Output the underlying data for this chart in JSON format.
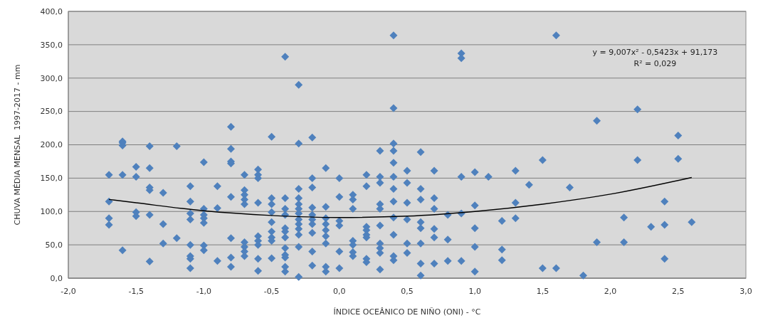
{
  "chart_data": {
    "type": "scatter",
    "xlabel": "ÍNDICE OCEÂNICO DE NIÑO (ONI) - °C",
    "ylabel": "CHUVA MÉDIA MENSAL  1997-2017 - mm",
    "grid": "y",
    "annotations": [
      "y = 9,007x² - 0,5423x + 91,173",
      "R² = 0,029"
    ],
    "xlim": [
      -2,
      3
    ],
    "xticks": [
      {
        "value": -2,
        "label": "-2,0"
      },
      {
        "value": -1.5,
        "label": "-1,5"
      },
      {
        "value": -1,
        "label": "-1,0"
      },
      {
        "value": -0.5,
        "label": "-0,5"
      },
      {
        "value": 0,
        "label": "0,0"
      },
      {
        "value": 0.5,
        "label": "0,5"
      },
      {
        "value": 1,
        "label": "1,0"
      },
      {
        "value": 1.5,
        "label": "1,5"
      },
      {
        "value": 2,
        "label": "2,0"
      },
      {
        "value": 2.5,
        "label": "2,5"
      },
      {
        "value": 3,
        "label": "3,0"
      }
    ],
    "ylim": [
      0,
      400
    ],
    "yticks": [
      {
        "value": 0,
        "label": "0,0"
      },
      {
        "value": 50,
        "label": "50,0"
      },
      {
        "value": 100,
        "label": "100,0"
      },
      {
        "value": 150,
        "label": "150,0"
      },
      {
        "value": 200,
        "label": "200,0"
      },
      {
        "value": 250,
        "label": "250,0"
      },
      {
        "value": 300,
        "label": "300,0"
      },
      {
        "value": 350,
        "label": "350,0"
      },
      {
        "value": 400,
        "label": "400,0"
      }
    ],
    "series": [
      {
        "marker": "diamond",
        "color": "#4f81bd",
        "x": [
          -1.7,
          -1.7,
          -1.7,
          -1.7,
          -1.6,
          -1.6,
          -1.6,
          -1.6,
          -1.6,
          -1.5,
          -1.5,
          -1.5,
          -1.5,
          -1.4,
          -1.4,
          -1.4,
          -1.4,
          -1.4,
          -1.4,
          -1.3,
          -1.3,
          -1.3,
          -1.2,
          -1.2,
          -1.1,
          -1.1,
          -1.1,
          -1.1,
          -1.1,
          -1.1,
          -1.1,
          -1.1,
          -1,
          -1,
          -1,
          -1,
          -1,
          -1,
          -1,
          -0.9,
          -0.9,
          -0.9,
          -0.8,
          -0.8,
          -0.8,
          -0.8,
          -0.8,
          -0.8,
          -0.8,
          -0.8,
          -0.7,
          -0.7,
          -0.7,
          -0.7,
          -0.7,
          -0.7,
          -0.7,
          -0.7,
          -0.7,
          -0.6,
          -0.6,
          -0.6,
          -0.6,
          -0.6,
          -0.6,
          -0.6,
          -0.6,
          -0.6,
          -0.5,
          -0.5,
          -0.5,
          -0.5,
          -0.5,
          -0.5,
          -0.5,
          -0.5,
          -0.5,
          -0.4,
          -0.4,
          -0.4,
          -0.4,
          -0.4,
          -0.4,
          -0.4,
          -0.4,
          -0.4,
          -0.4,
          -0.4,
          -0.4,
          -0.3,
          -0.3,
          -0.3,
          -0.3,
          -0.3,
          -0.3,
          -0.3,
          -0.3,
          -0.3,
          -0.3,
          -0.3,
          -0.3,
          -0.3,
          -0.2,
          -0.2,
          -0.2,
          -0.2,
          -0.2,
          -0.2,
          -0.2,
          -0.2,
          -0.2,
          -0.2,
          -0.1,
          -0.1,
          -0.1,
          -0.1,
          -0.1,
          -0.1,
          -0.1,
          -0.1,
          -0.1,
          0,
          0,
          0,
          0,
          0,
          0,
          0.1,
          0.1,
          0.1,
          0.1,
          0.1,
          0.1,
          0.1,
          0.2,
          0.2,
          0.2,
          0.2,
          0.2,
          0.2,
          0.2,
          0.2,
          0.3,
          0.3,
          0.3,
          0.3,
          0.3,
          0.3,
          0.3,
          0.3,
          0.3,
          0.3,
          0.4,
          0.4,
          0.4,
          0.4,
          0.4,
          0.4,
          0.4,
          0.4,
          0.4,
          0.4,
          0.4,
          0.4,
          0.5,
          0.5,
          0.5,
          0.5,
          0.5,
          0.5,
          0.6,
          0.6,
          0.6,
          0.6,
          0.6,
          0.6,
          0.6,
          0.6,
          0.7,
          0.7,
          0.7,
          0.7,
          0.7,
          0.7,
          0.8,
          0.8,
          0.8,
          0.9,
          0.9,
          0.9,
          0.9,
          0.9,
          1,
          1,
          1,
          1,
          1,
          1.1,
          1.2,
          1.2,
          1.2,
          1.3,
          1.3,
          1.3,
          1.4,
          1.5,
          1.5,
          1.6,
          1.6,
          1.7,
          1.8,
          1.9,
          1.9,
          2.1,
          2.1,
          2.2,
          2.2,
          2.3,
          2.4,
          2.4,
          2.4,
          2.5,
          2.5,
          2.6
        ],
        "values": [
          155,
          115,
          90,
          80,
          205,
          203,
          199,
          155,
          42,
          167,
          152,
          99,
          93,
          198,
          165,
          136,
          132,
          95,
          25,
          128,
          81,
          52,
          198,
          60,
          138,
          115,
          97,
          88,
          50,
          33,
          29,
          15,
          174,
          104,
          95,
          90,
          83,
          49,
          42,
          138,
          105,
          26,
          227,
          194,
          175,
          172,
          122,
          60,
          31,
          17,
          155,
          132,
          125,
          118,
          111,
          54,
          47,
          40,
          33,
          163,
          155,
          150,
          113,
          63,
          56,
          50,
          29,
          11,
          212,
          120,
          111,
          99,
          84,
          70,
          61,
          56,
          30,
          332,
          120,
          104,
          95,
          75,
          70,
          61,
          45,
          35,
          31,
          17,
          10,
          290,
          202,
          134,
          120,
          111,
          104,
          97,
          88,
          81,
          74,
          65,
          47,
          2,
          211,
          150,
          136,
          106,
          95,
          88,
          81,
          68,
          40,
          19,
          165,
          107,
          90,
          81,
          72,
          63,
          52,
          17,
          10,
          150,
          122,
          86,
          79,
          40,
          15,
          125,
          118,
          104,
          56,
          50,
          39,
          33,
          155,
          138,
          77,
          72,
          65,
          61,
          29,
          24,
          191,
          152,
          143,
          111,
          104,
          79,
          52,
          45,
          38,
          13,
          364,
          255,
          202,
          191,
          173,
          152,
          134,
          115,
          91,
          65,
          33,
          27,
          161,
          143,
          113,
          88,
          52,
          38,
          189,
          134,
          118,
          84,
          75,
          52,
          22,
          4,
          161,
          120,
          104,
          74,
          61,
          22,
          95,
          58,
          26,
          337,
          330,
          152,
          97,
          26,
          159,
          109,
          75,
          47,
          10,
          152,
          86,
          43,
          27,
          161,
          113,
          90,
          140,
          177,
          15,
          364,
          15,
          136,
          4,
          236,
          54,
          91,
          54,
          253,
          177,
          77,
          115,
          80,
          29,
          214,
          179,
          84
        ]
      },
      {
        "type": "line",
        "marker": "none",
        "color": "#000000",
        "x": [
          -1.7,
          -1.5,
          -1,
          -0.5,
          0,
          0.5,
          1,
          1.5,
          2,
          2.6
        ],
        "values": [
          118,
          113,
          101,
          94,
          91,
          93,
          100,
          111,
          126,
          151
        ]
      }
    ]
  }
}
